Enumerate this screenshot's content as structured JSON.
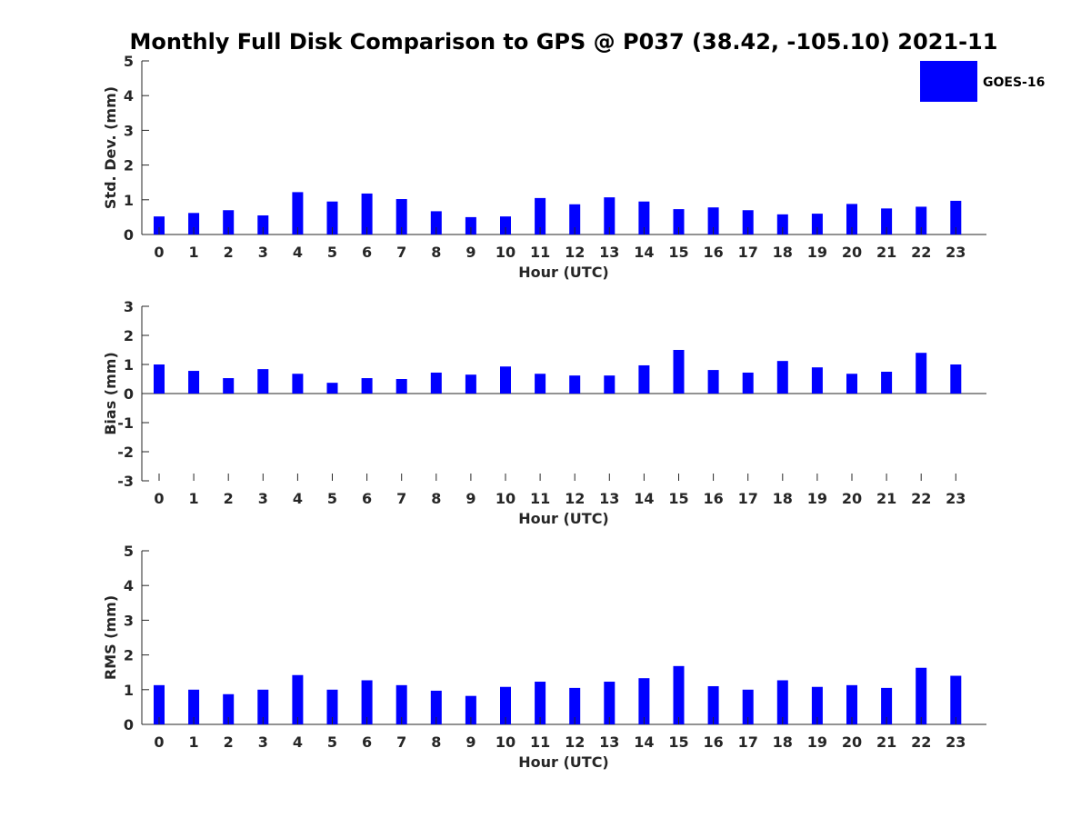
{
  "title": "Monthly Full Disk Comparison to GPS @ P037 (38.42, -105.10) 2021-11",
  "legend": {
    "label": "GOES-16",
    "color": "#0000ff"
  },
  "colors": {
    "bar": "#0000ff",
    "axis": "#262626"
  },
  "chart_data": [
    {
      "type": "bar",
      "xlabel": "Hour (UTC)",
      "ylabel": "Std. Dev. (mm)",
      "categories": [
        "0",
        "1",
        "2",
        "3",
        "4",
        "5",
        "6",
        "7",
        "8",
        "9",
        "10",
        "11",
        "12",
        "13",
        "14",
        "15",
        "16",
        "17",
        "18",
        "19",
        "20",
        "21",
        "22",
        "23"
      ],
      "yticks": [
        0,
        1,
        2,
        3,
        4,
        5
      ],
      "ylim": [
        0,
        5
      ],
      "series": [
        {
          "name": "GOES-16",
          "values": [
            0.52,
            0.62,
            0.7,
            0.55,
            1.22,
            0.95,
            1.18,
            1.02,
            0.67,
            0.5,
            0.52,
            1.05,
            0.87,
            1.07,
            0.95,
            0.73,
            0.78,
            0.7,
            0.58,
            0.6,
            0.88,
            0.75,
            0.8,
            0.97
          ]
        }
      ]
    },
    {
      "type": "bar",
      "xlabel": "Hour (UTC)",
      "ylabel": "Bias (mm)",
      "categories": [
        "0",
        "1",
        "2",
        "3",
        "4",
        "5",
        "6",
        "7",
        "8",
        "9",
        "10",
        "11",
        "12",
        "13",
        "14",
        "15",
        "16",
        "17",
        "18",
        "19",
        "20",
        "21",
        "22",
        "23"
      ],
      "yticks": [
        -3,
        -2,
        -1,
        0,
        1,
        2,
        3
      ],
      "ylim": [
        -3,
        3
      ],
      "series": [
        {
          "name": "GOES-16",
          "values": [
            1.0,
            0.78,
            0.53,
            0.84,
            0.68,
            0.37,
            0.53,
            0.5,
            0.72,
            0.65,
            0.93,
            0.68,
            0.62,
            0.62,
            0.97,
            1.5,
            0.81,
            0.72,
            1.12,
            0.9,
            0.68,
            0.75,
            1.4,
            1.0
          ]
        }
      ]
    },
    {
      "type": "bar",
      "xlabel": "Hour (UTC)",
      "ylabel": "RMS (mm)",
      "categories": [
        "0",
        "1",
        "2",
        "3",
        "4",
        "5",
        "6",
        "7",
        "8",
        "9",
        "10",
        "11",
        "12",
        "13",
        "14",
        "15",
        "16",
        "17",
        "18",
        "19",
        "20",
        "21",
        "22",
        "23"
      ],
      "yticks": [
        0,
        1,
        2,
        3,
        4,
        5
      ],
      "ylim": [
        0,
        5
      ],
      "series": [
        {
          "name": "GOES-16",
          "values": [
            1.13,
            1.0,
            0.87,
            1.0,
            1.42,
            1.0,
            1.27,
            1.13,
            0.97,
            0.82,
            1.08,
            1.23,
            1.05,
            1.23,
            1.33,
            1.68,
            1.1,
            1.0,
            1.27,
            1.08,
            1.13,
            1.05,
            1.63,
            1.4
          ]
        }
      ]
    }
  ]
}
